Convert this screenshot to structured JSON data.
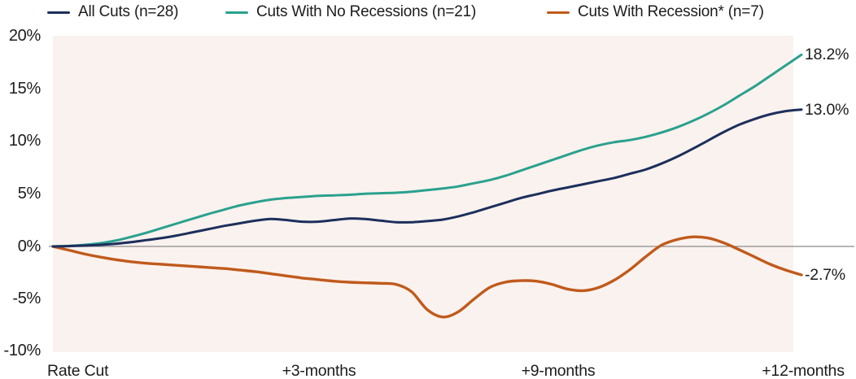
{
  "colors": {
    "all_cuts": "#1c2f5c",
    "no_recession": "#2aa18e",
    "recession": "#c05a1c",
    "plot_background": "#faf2ee",
    "zero_line": "#8a8a8a",
    "text": "#1c1c1c"
  },
  "chart_data": {
    "type": "line",
    "title": "",
    "xlabel": "",
    "ylabel": "",
    "ylim": [
      -10,
      20
    ],
    "y_ticks": [
      {
        "label": "20%",
        "value": 20
      },
      {
        "label": "15%",
        "value": 15
      },
      {
        "label": "10%",
        "value": 10
      },
      {
        "label": "5%",
        "value": 5
      },
      {
        "label": "0%",
        "value": 0
      },
      {
        "label": "-5%",
        "value": -5
      },
      {
        "label": "-10%",
        "value": -10
      }
    ],
    "x_labels": [
      {
        "label": "Rate Cut"
      },
      {
        "label": "+3-months"
      },
      {
        "label": "+9-months"
      },
      {
        "label": "+12-months"
      }
    ],
    "x_months": [
      0,
      0.25,
      0.5,
      0.75,
      1,
      1.25,
      1.5,
      1.75,
      2,
      2.25,
      2.5,
      2.75,
      3,
      3.25,
      3.5,
      3.75,
      4,
      4.25,
      4.5,
      4.75,
      5,
      5.25,
      5.5,
      5.75,
      6,
      6.25,
      6.5,
      6.75,
      7,
      7.25,
      7.5,
      7.75,
      8,
      8.25,
      8.5,
      8.75,
      9,
      9.25,
      9.5,
      9.75,
      10,
      10.25,
      10.5,
      10.75,
      11,
      11.25,
      11.5,
      11.75,
      12
    ],
    "legend_position": "top",
    "grid": false,
    "series": [
      {
        "id": "no_recession",
        "legend_label": "Cuts With No Recessions (n=21)",
        "end_label": "18.2%",
        "end_value": 18.2,
        "values": [
          0,
          0.05,
          0.15,
          0.3,
          0.55,
          0.9,
          1.3,
          1.75,
          2.2,
          2.65,
          3.1,
          3.5,
          3.9,
          4.2,
          4.45,
          4.6,
          4.7,
          4.8,
          4.85,
          4.9,
          5.0,
          5.05,
          5.1,
          5.2,
          5.35,
          5.5,
          5.7,
          6.0,
          6.3,
          6.7,
          7.2,
          7.7,
          8.2,
          8.7,
          9.2,
          9.6,
          9.9,
          10.1,
          10.4,
          10.8,
          11.3,
          11.9,
          12.6,
          13.4,
          14.3,
          15.2,
          16.2,
          17.2,
          18.2
        ]
      },
      {
        "id": "recession",
        "legend_label": "Cuts With Recession* (n=7)",
        "end_label": "-2.7%",
        "end_value": -2.7,
        "values": [
          0,
          -0.35,
          -0.7,
          -1.0,
          -1.25,
          -1.45,
          -1.6,
          -1.7,
          -1.8,
          -1.9,
          -2.0,
          -2.1,
          -2.25,
          -2.4,
          -2.6,
          -2.8,
          -3.0,
          -3.15,
          -3.3,
          -3.4,
          -3.45,
          -3.5,
          -3.6,
          -4.3,
          -6.0,
          -6.7,
          -6.2,
          -5.0,
          -3.9,
          -3.4,
          -3.25,
          -3.3,
          -3.6,
          -4.05,
          -4.2,
          -3.9,
          -3.2,
          -2.2,
          -1.0,
          0.1,
          0.65,
          0.9,
          0.8,
          0.35,
          -0.3,
          -1.0,
          -1.7,
          -2.25,
          -2.7
        ]
      },
      {
        "id": "all_cuts",
        "legend_label": "All Cuts (n=28)",
        "end_label": "13.0%",
        "end_value": 13.0,
        "values": [
          0,
          0.03,
          0.08,
          0.15,
          0.25,
          0.4,
          0.6,
          0.8,
          1.05,
          1.35,
          1.65,
          1.95,
          2.2,
          2.45,
          2.6,
          2.5,
          2.35,
          2.35,
          2.5,
          2.65,
          2.6,
          2.45,
          2.3,
          2.3,
          2.4,
          2.55,
          2.85,
          3.25,
          3.7,
          4.15,
          4.6,
          4.95,
          5.3,
          5.6,
          5.9,
          6.2,
          6.5,
          6.9,
          7.3,
          7.85,
          8.5,
          9.25,
          10.05,
          10.85,
          11.55,
          12.1,
          12.55,
          12.85,
          13.0
        ]
      }
    ]
  }
}
